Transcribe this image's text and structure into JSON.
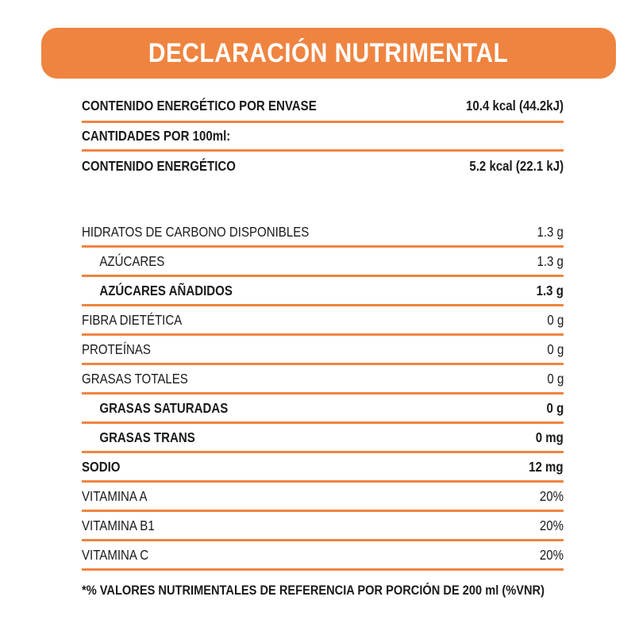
{
  "header": {
    "title": "DECLARACIÓN NUTRIMENTAL"
  },
  "rows": [
    {
      "label": "CONTENIDO ENERGÉTICO POR ENVASE",
      "value": "10.4 kcal (44.2kJ)"
    },
    {
      "label": "CANTIDADES POR 100ml:",
      "value": ""
    },
    {
      "label": "CONTENIDO ENERGÉTICO",
      "value": "5.2 kcal (22.1 kJ)"
    },
    {
      "label": "HIDRATOS DE CARBONO DISPONIBLES",
      "value": "1.3 g"
    },
    {
      "label": "AZÚCARES",
      "value": "1.3 g"
    },
    {
      "label": "AZÚCARES AÑADIDOS",
      "value": "1.3 g"
    },
    {
      "label": "FIBRA DIETÉTICA",
      "value": "0 g"
    },
    {
      "label": "PROTEÍNAS",
      "value": "0 g"
    },
    {
      "label": "GRASAS TOTALES",
      "value": "0 g"
    },
    {
      "label": "GRASAS SATURADAS",
      "value": "0 g"
    },
    {
      "label": "GRASAS TRANS",
      "value": "0 mg"
    },
    {
      "label": "SODIO",
      "value": "12 mg"
    },
    {
      "label": "VITAMINA A",
      "value": "20%"
    },
    {
      "label": "VITAMINA B1",
      "value": "20%"
    },
    {
      "label": "VITAMINA C",
      "value": "20%"
    }
  ],
  "footer": {
    "text": "*% VALORES NUTRIMENTALES DE REFERENCIA POR PORCIÓN DE 200 ml (%VNR)"
  },
  "colors": {
    "accent": "#ef8440",
    "text": "#1a1a1a",
    "background": "#ffffff"
  }
}
